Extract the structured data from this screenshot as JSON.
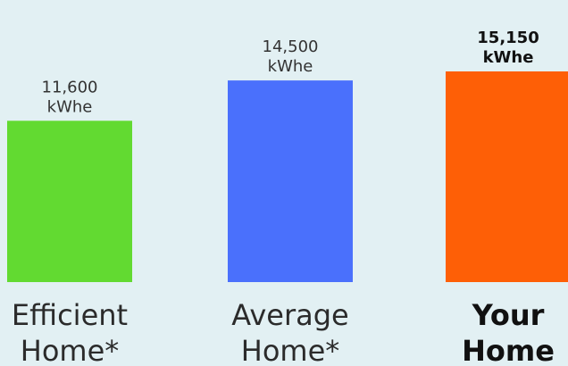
{
  "chart_data": {
    "type": "bar",
    "categories": [
      {
        "line1": "Efficient",
        "line2": "Home*"
      },
      {
        "line1": "Average",
        "line2": "Home*"
      },
      {
        "line1": "Your",
        "line2": "Home"
      }
    ],
    "values": [
      11600,
      14500,
      15150
    ],
    "value_labels": [
      {
        "line1": "11,600",
        "line2": "kWhe"
      },
      {
        "line1": "14,500",
        "line2": "kWhe"
      },
      {
        "line1": "15,150",
        "line2": "kWhe"
      }
    ],
    "bar_colors": [
      "#62da31",
      "#4a70fc",
      "#fe5f06"
    ],
    "emphasized": [
      false,
      false,
      true
    ],
    "background_color": "#e2f0f3",
    "title": "",
    "xlabel": "",
    "ylabel": "",
    "grid": false
  }
}
